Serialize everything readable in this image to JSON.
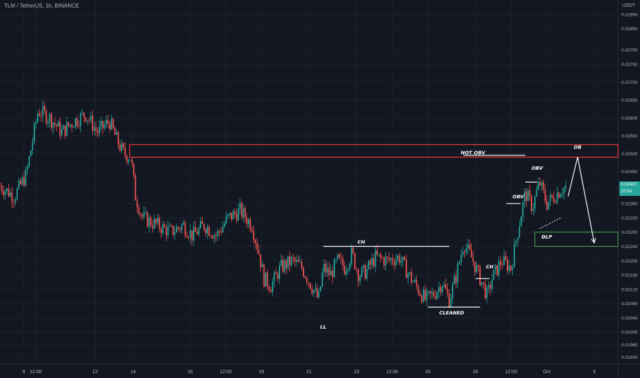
{
  "header": {
    "title": "TLM / TetherUS, 1h, BINANCE"
  },
  "axis": {
    "unit": "USDT"
  },
  "price_tag": {
    "value": "0.02407",
    "countdown": "20:54"
  },
  "colors": {
    "background": "#131722",
    "up": "#26a69a",
    "down": "#ef5350",
    "resistance": "#e53935",
    "support": "#4caf50",
    "annotation": "#ffffff",
    "axis_text": "#b2b5be",
    "grid": "#1e222d"
  },
  "chart_data": {
    "type": "candlestick",
    "title": "TLM / TetherUS, 1h, BINANCE",
    "ylabel": "USDT",
    "ylim": [
      0.0191,
      0.0293
    ],
    "grid": true,
    "y_ticks": [
      "0.02890",
      "0.02850",
      "0.02790",
      "0.02750",
      "0.02700",
      "0.02650",
      "0.02600",
      "0.02550",
      "0.02500",
      "0.02450",
      "0.02400",
      "0.02360",
      "0.02320",
      "0.02280",
      "0.02240",
      "0.02200",
      "0.02160",
      "0.02120",
      "0.02080",
      "0.02040",
      "0.02000",
      "0.01965",
      "0.01930"
    ],
    "y_tick_values": [
      0.0289,
      0.0285,
      0.0279,
      0.0275,
      0.027,
      0.0265,
      0.026,
      0.0255,
      0.025,
      0.0245,
      0.024,
      0.0236,
      0.0232,
      0.0228,
      0.0224,
      0.022,
      0.0216,
      0.0212,
      0.0208,
      0.0204,
      0.02,
      0.01965,
      0.0193
    ],
    "x_ticks": [
      "9",
      "12:00",
      "12",
      "14",
      "16",
      "12:00",
      "19",
      "21",
      "23",
      "12:00",
      "26",
      "28",
      "12:00",
      "Oct",
      "3"
    ],
    "x_tick_days": [
      9,
      9.5,
      12,
      13.6,
      16,
      17.5,
      19,
      21,
      23,
      24.5,
      26,
      28,
      29.5,
      31,
      33
    ],
    "x_range_days": [
      8.0,
      34.0
    ],
    "price_path": [
      [
        8.0,
        0.0241
      ],
      [
        8.6,
        0.0238
      ],
      [
        9.1,
        0.0244
      ],
      [
        9.6,
        0.0262
      ],
      [
        10.1,
        0.026
      ],
      [
        10.6,
        0.0256
      ],
      [
        11.1,
        0.0259
      ],
      [
        11.6,
        0.0261
      ],
      [
        12.1,
        0.0256
      ],
      [
        12.6,
        0.0259
      ],
      [
        12.9,
        0.0254
      ],
      [
        13.2,
        0.025
      ],
      [
        13.5,
        0.0249
      ],
      [
        13.7,
        0.0238
      ],
      [
        14.0,
        0.0232
      ],
      [
        14.6,
        0.023
      ],
      [
        15.2,
        0.0228
      ],
      [
        15.7,
        0.023
      ],
      [
        16.1,
        0.0227
      ],
      [
        16.6,
        0.023
      ],
      [
        17.1,
        0.0227
      ],
      [
        17.6,
        0.0232
      ],
      [
        18.1,
        0.0234
      ],
      [
        18.6,
        0.023
      ],
      [
        18.9,
        0.0222
      ],
      [
        19.1,
        0.0215
      ],
      [
        19.4,
        0.0213
      ],
      [
        19.8,
        0.0218
      ],
      [
        20.3,
        0.022
      ],
      [
        20.7,
        0.0218
      ],
      [
        21.1,
        0.0213
      ],
      [
        21.4,
        0.0209
      ],
      [
        21.6,
        0.0218
      ],
      [
        21.9,
        0.0216
      ],
      [
        22.2,
        0.022
      ],
      [
        22.5,
        0.0218
      ],
      [
        22.8,
        0.0222
      ],
      [
        23.1,
        0.0216
      ],
      [
        23.4,
        0.0217
      ],
      [
        23.8,
        0.0221
      ],
      [
        24.3,
        0.022
      ],
      [
        24.8,
        0.0221
      ],
      [
        25.2,
        0.0216
      ],
      [
        25.6,
        0.0212
      ],
      [
        25.9,
        0.0209
      ],
      [
        26.3,
        0.0211
      ],
      [
        26.6,
        0.0214
      ],
      [
        26.9,
        0.0209
      ],
      [
        27.2,
        0.0216
      ],
      [
        27.5,
        0.0225
      ],
      [
        27.9,
        0.022
      ],
      [
        28.2,
        0.0215
      ],
      [
        28.5,
        0.021
      ],
      [
        28.7,
        0.0215
      ],
      [
        29.1,
        0.022
      ],
      [
        29.5,
        0.0218
      ],
      [
        29.8,
        0.0229
      ],
      [
        30.1,
        0.0239
      ],
      [
        30.4,
        0.0235
      ],
      [
        30.7,
        0.0242
      ],
      [
        31.0,
        0.0236
      ],
      [
        31.3,
        0.0238
      ],
      [
        31.6,
        0.024
      ],
      [
        31.8,
        0.02407
      ]
    ],
    "resistance_zone": {
      "top": 0.02525,
      "bottom": 0.0249,
      "x_start_days": 13.45
    },
    "support_zone": {
      "top": 0.0228,
      "bottom": 0.0224,
      "x_start_days": 30.5
    },
    "annotations": [
      {
        "label": "CH",
        "x_days": 23.2,
        "y": 0.02248
      },
      {
        "label": "LL",
        "x_days": 21.6,
        "y": 0.0201
      },
      {
        "label": "CLEANED",
        "x_days": 27.0,
        "y": 0.0205
      },
      {
        "label": "CH",
        "x_days": 28.6,
        "y": 0.02178
      },
      {
        "label": "NOT OBV",
        "x_days": 27.9,
        "y": 0.02498
      },
      {
        "label": "OBV",
        "x_days": 30.6,
        "y": 0.02455
      },
      {
        "label": "OBV",
        "x_days": 29.8,
        "y": 0.02375
      },
      {
        "label": "DLP",
        "x_days": 31.0,
        "y": 0.02262
      },
      {
        "label": "OB",
        "x_days": 32.3,
        "y": 0.02513
      }
    ],
    "structure_lines": [
      {
        "from_days": 21.6,
        "to_days": 26.9,
        "y": 0.0224
      },
      {
        "from_days": 26.0,
        "to_days": 28.2,
        "y": 0.0207
      },
      {
        "from_days": 27.5,
        "to_days": 30.1,
        "y": 0.02495
      },
      {
        "from_days": 28.0,
        "to_days": 28.6,
        "y": 0.0215
      },
      {
        "from_days": 29.3,
        "to_days": 29.9,
        "y": 0.0236
      },
      {
        "from_days": 30.1,
        "to_days": 30.6,
        "y": 0.0242
      }
    ],
    "projection": [
      [
        31.9,
        0.0238
      ],
      [
        32.3,
        0.0249
      ],
      [
        33.0,
        0.0225
      ]
    ]
  }
}
